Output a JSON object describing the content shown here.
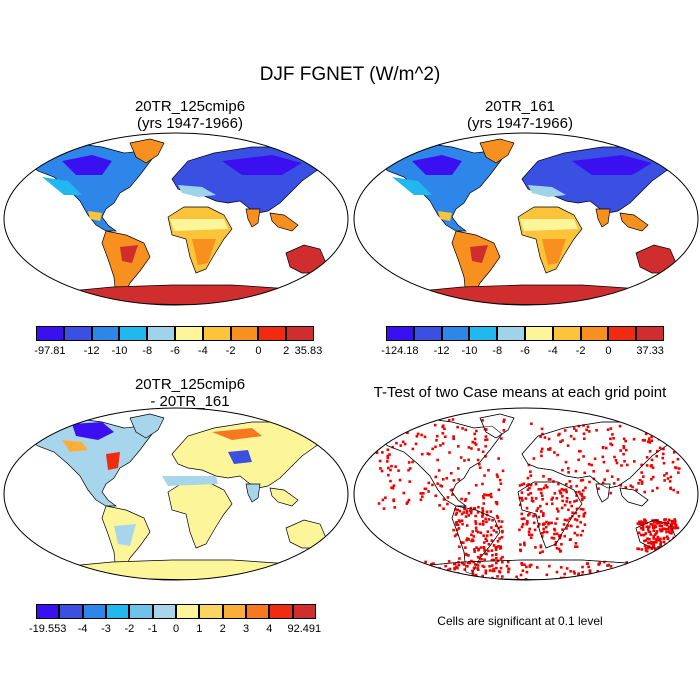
{
  "title": "DJF FGNET (W/m^2)",
  "panels": [
    {
      "id": "case1",
      "title_line1": "20TR_125cmip6",
      "title_line2": "(yrs 1947-1966)",
      "colorbar": {
        "colors": [
          "#3b10f0",
          "#3a50e2",
          "#2e86e8",
          "#20b8ee",
          "#9fd3ea",
          "#fdf59a",
          "#fbc43a",
          "#f7901f",
          "#f02b10",
          "#d02e2e"
        ],
        "labels": [
          "-97.81",
          "-12",
          "-10",
          "-8",
          "-6",
          "-4",
          "-2",
          "0",
          "2",
          "35.83"
        ]
      }
    },
    {
      "id": "case2",
      "title_line1": "20TR_161",
      "title_line2": "(yrs 1947-1966)",
      "colorbar": {
        "colors": [
          "#3b10f0",
          "#3a50e2",
          "#2e86e8",
          "#20b8ee",
          "#9fd3ea",
          "#fdf59a",
          "#fbc43a",
          "#f7901f",
          "#f02b10",
          "#d02e2e"
        ],
        "labels": [
          "-124.18",
          "-12",
          "-10",
          "-8",
          "-6",
          "-4",
          "-2",
          "0",
          "37.33"
        ]
      }
    },
    {
      "id": "diff",
      "title_line1": "20TR_125cmip6",
      "title_line2": "- 20TR_161",
      "colorbar": {
        "colors": [
          "#3b10f0",
          "#3a50e2",
          "#2e86e8",
          "#20b8ee",
          "#6fc3ea",
          "#a7d6ec",
          "#fdf59a",
          "#fbd562",
          "#fbaf3a",
          "#f7781f",
          "#f02b10",
          "#d02e2e"
        ],
        "labels": [
          "-19.553",
          "-4",
          "-3",
          "-2",
          "-1",
          "0",
          "1",
          "2",
          "3",
          "4",
          "92.491"
        ]
      }
    },
    {
      "id": "ttest",
      "title_line1": "T-Test of two Case means at each grid point",
      "note": "Cells are significant at 0.1 level"
    }
  ]
}
